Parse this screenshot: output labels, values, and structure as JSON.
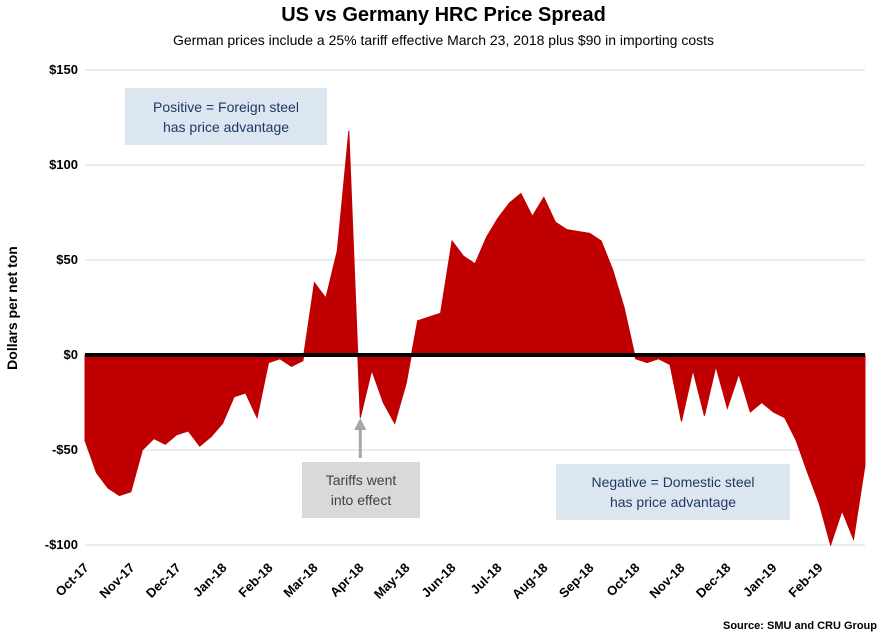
{
  "title": "US vs Germany HRC Price Spread",
  "subtitle": "German prices include a 25% tariff effective March 23, 2018 plus $90 in importing costs",
  "y_axis_title": "Dollars per net ton",
  "source": "Source: SMU and CRU Group",
  "annotations": {
    "positive": {
      "line1": "Positive = Foreign steel",
      "line2": "has price advantage"
    },
    "tariff": {
      "line1": "Tariffs went",
      "line2": "into effect",
      "points_to": "Apr-18"
    },
    "negative": {
      "line1": "Negative = Domestic steel",
      "line2": "has price advantage"
    }
  },
  "colors": {
    "area": "#C00000",
    "zero_line": "#000000",
    "grid": "#D9D9D9",
    "annotation_blue": "#DCE6F1",
    "annotation_gray": "#D9D9D9",
    "arrow": "#A6A6A6"
  },
  "chart_data": {
    "type": "area",
    "title": "US vs Germany HRC Price Spread",
    "xlabel": "",
    "ylabel": "Dollars per net ton",
    "ylim": [
      -100,
      150
    ],
    "grid": true,
    "points_per_month": 4,
    "y_ticks": [
      {
        "value": 150,
        "label": "$150"
      },
      {
        "value": 100,
        "label": "$100"
      },
      {
        "value": 50,
        "label": "$50"
      },
      {
        "value": 0,
        "label": "$0"
      },
      {
        "value": -50,
        "label": "-$50"
      },
      {
        "value": -100,
        "label": "-$100"
      }
    ],
    "x_tick_labels": [
      "Oct-17",
      "Nov-17",
      "Dec-17",
      "Jan-18",
      "Feb-18",
      "Mar-18",
      "Apr-18",
      "May-18",
      "Jun-18",
      "Jul-18",
      "Aug-18",
      "Sep-18",
      "Oct-18",
      "Nov-18",
      "Dec-18",
      "Jan-19",
      "Feb-19"
    ],
    "values": [
      -45,
      -62,
      -70,
      -74,
      -72,
      -50,
      -44,
      -47,
      -42,
      -40,
      -48,
      -43,
      -36,
      -22,
      -20,
      -33,
      -4,
      -2,
      -6,
      -3,
      38,
      30,
      55,
      118,
      -33,
      -8,
      -25,
      -36,
      -15,
      18,
      20,
      22,
      60,
      52,
      48,
      62,
      72,
      80,
      85,
      73,
      83,
      70,
      66,
      65,
      64,
      60,
      45,
      25,
      -2,
      -4,
      -2,
      -5,
      -35,
      -8,
      -32,
      -6,
      -28,
      -10,
      -30,
      -25,
      -30,
      -33,
      -45,
      -62,
      -78,
      -100,
      -82,
      -97,
      -58
    ]
  }
}
